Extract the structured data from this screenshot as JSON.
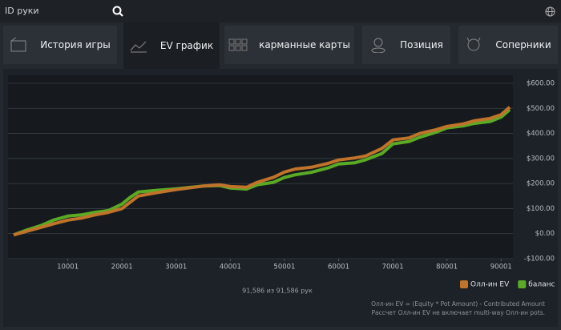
{
  "search": {
    "placeholder": "ID руки"
  },
  "tabs": [
    {
      "label": "История игры"
    },
    {
      "label": "EV график",
      "active": true
    },
    {
      "label": "карманные карты"
    },
    {
      "label": "Позиция"
    },
    {
      "label": "Соперники"
    }
  ],
  "chart_data": {
    "type": "line",
    "x": [
      0,
      2500,
      5000,
      7500,
      10001,
      12500,
      15000,
      17500,
      20001,
      21500,
      23000,
      26000,
      30001,
      35000,
      38000,
      40001,
      43000,
      45000,
      48000,
      50001,
      52000,
      55000,
      58000,
      60001,
      63000,
      65000,
      68000,
      70001,
      73000,
      75000,
      78000,
      80001,
      83000,
      85000,
      88000,
      90001,
      91586
    ],
    "series": [
      {
        "name": "Олл-ин EV",
        "color": "#c0732a",
        "values": [
          -5,
          10,
          25,
          40,
          54,
          62,
          75,
          85,
          100,
          125,
          150,
          162,
          176,
          190,
          195,
          188,
          185,
          205,
          225,
          246,
          258,
          265,
          280,
          294,
          302,
          310,
          340,
          374,
          382,
          400,
          415,
          428,
          438,
          450,
          460,
          475,
          505
        ]
      },
      {
        "name": "баланс",
        "color": "#5aaa25",
        "values": [
          -5,
          15,
          32,
          55,
          70,
          75,
          85,
          92,
          118,
          145,
          166,
          172,
          179,
          190,
          192,
          182,
          178,
          195,
          205,
          224,
          235,
          245,
          262,
          278,
          283,
          295,
          320,
          358,
          368,
          385,
          405,
          422,
          430,
          440,
          448,
          465,
          495
        ]
      }
    ],
    "xlim": [
      0,
      91586
    ],
    "ylim": [
      -100,
      600
    ],
    "xticks": [
      10001,
      20001,
      30001,
      40001,
      50001,
      60001,
      70001,
      80001,
      90001
    ],
    "yticks": [
      {
        "value": -100,
        "label": "-$100.00"
      },
      {
        "value": 0,
        "label": "$0.00"
      },
      {
        "value": 100,
        "label": "$100.00"
      },
      {
        "value": 200,
        "label": "$200.00"
      },
      {
        "value": 300,
        "label": "$300.00"
      },
      {
        "value": 400,
        "label": "$400.00"
      },
      {
        "value": 500,
        "label": "$500.00"
      },
      {
        "value": 600,
        "label": "$600.00"
      }
    ],
    "grid": true,
    "footer": "91,586 из 91,586 рук",
    "notes": [
      "Олл-ин EV = (Equity * Pot Amount) - Contributed Amount",
      "Рассчет Олл-ин EV не включает multi-way Олл-ин pots."
    ]
  }
}
